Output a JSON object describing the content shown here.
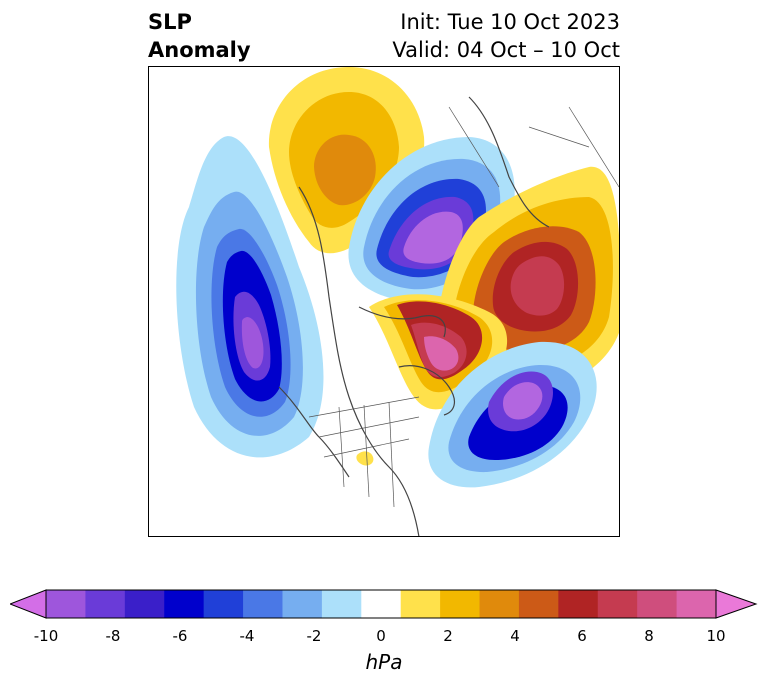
{
  "header": {
    "title_line1": "SLP",
    "title_line2": "Anomaly",
    "init_text": "Init: Tue 10 Oct 2023",
    "valid_text": "Valid: 04 Oct – 10 Oct"
  },
  "colorbar": {
    "units": "hPa",
    "ticks": [
      "-10",
      "-8",
      "-6",
      "-4",
      "-2",
      "0",
      "2",
      "4",
      "6",
      "8",
      "10"
    ],
    "levels": [
      -10,
      -9,
      -8,
      -7,
      -6,
      -5,
      -4,
      -3,
      -2,
      -1,
      1,
      2,
      3,
      4,
      5,
      6,
      7,
      8,
      9,
      10
    ],
    "colors": [
      "#d36ee7",
      "#9e56dc",
      "#6a3bd8",
      "#3a1fc9",
      "#0000cc",
      "#2040d8",
      "#4a78e6",
      "#76aef0",
      "#ace0fa",
      "#ffffff",
      "#ffe14b",
      "#f2b800",
      "#e08a0c",
      "#cc5a17",
      "#b02424",
      "#c53b50",
      "#cf4e7d",
      "#dc65ad",
      "#ea79d8"
    ],
    "extend": "both"
  },
  "map": {
    "projection": "north polar stereographic",
    "field": "sea level pressure anomaly"
  }
}
